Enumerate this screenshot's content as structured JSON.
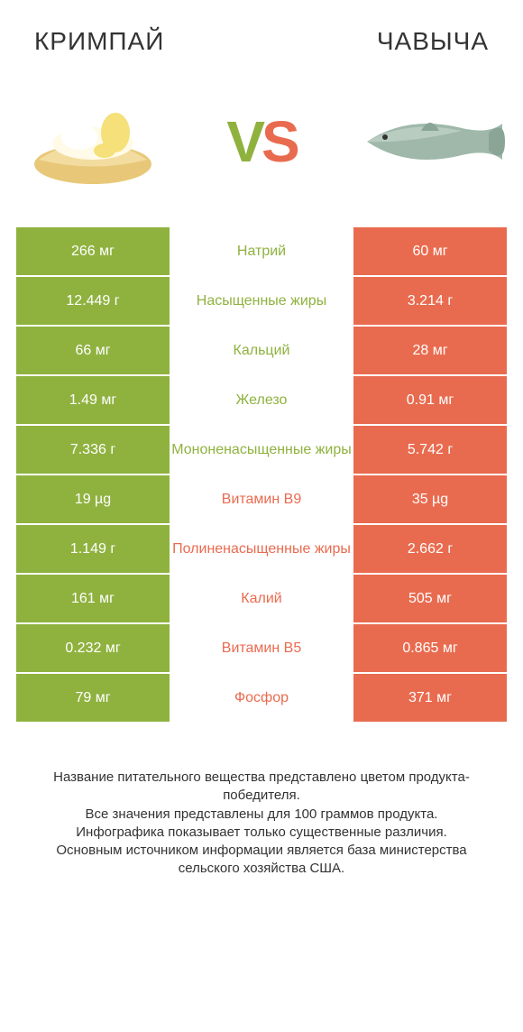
{
  "colors": {
    "left": "#8fb23f",
    "right": "#e96b4f",
    "mid_left": "#8fb23f",
    "mid_right": "#e96b4f",
    "bg": "#ffffff",
    "text": "#333333"
  },
  "titles": {
    "left": "КРИМПАЙ",
    "right": "ЧАВЫЧА"
  },
  "vs": {
    "v": "V",
    "s": "S"
  },
  "rows": [
    {
      "left": "266 мг",
      "mid": "Натрий",
      "right": "60 мг",
      "winner": "left"
    },
    {
      "left": "12.449 г",
      "mid": "Насыщенные жиры",
      "right": "3.214 г",
      "winner": "left"
    },
    {
      "left": "66 мг",
      "mid": "Кальций",
      "right": "28 мг",
      "winner": "left"
    },
    {
      "left": "1.49 мг",
      "mid": "Железо",
      "right": "0.91 мг",
      "winner": "left"
    },
    {
      "left": "7.336 г",
      "mid": "Мононенасыщенные жиры",
      "right": "5.742 г",
      "winner": "left"
    },
    {
      "left": "19 µg",
      "mid": "Витамин B9",
      "right": "35 µg",
      "winner": "right"
    },
    {
      "left": "1.149 г",
      "mid": "Полиненасыщенные жиры",
      "right": "2.662 г",
      "winner": "right"
    },
    {
      "left": "161 мг",
      "mid": "Калий",
      "right": "505 мг",
      "winner": "right"
    },
    {
      "left": "0.232 мг",
      "mid": "Витамин B5",
      "right": "0.865 мг",
      "winner": "right"
    },
    {
      "left": "79 мг",
      "mid": "Фосфор",
      "right": "371 мг",
      "winner": "right"
    }
  ],
  "footer": {
    "line1": "Название питательного вещества представлено цветом продукта-победителя.",
    "line2": "Все значения представлены для 100 граммов продукта.",
    "line3": "Инфографика показывает только существенные различия.",
    "line4": "Основным источником информации является база министерства сельского хозяйства США."
  }
}
